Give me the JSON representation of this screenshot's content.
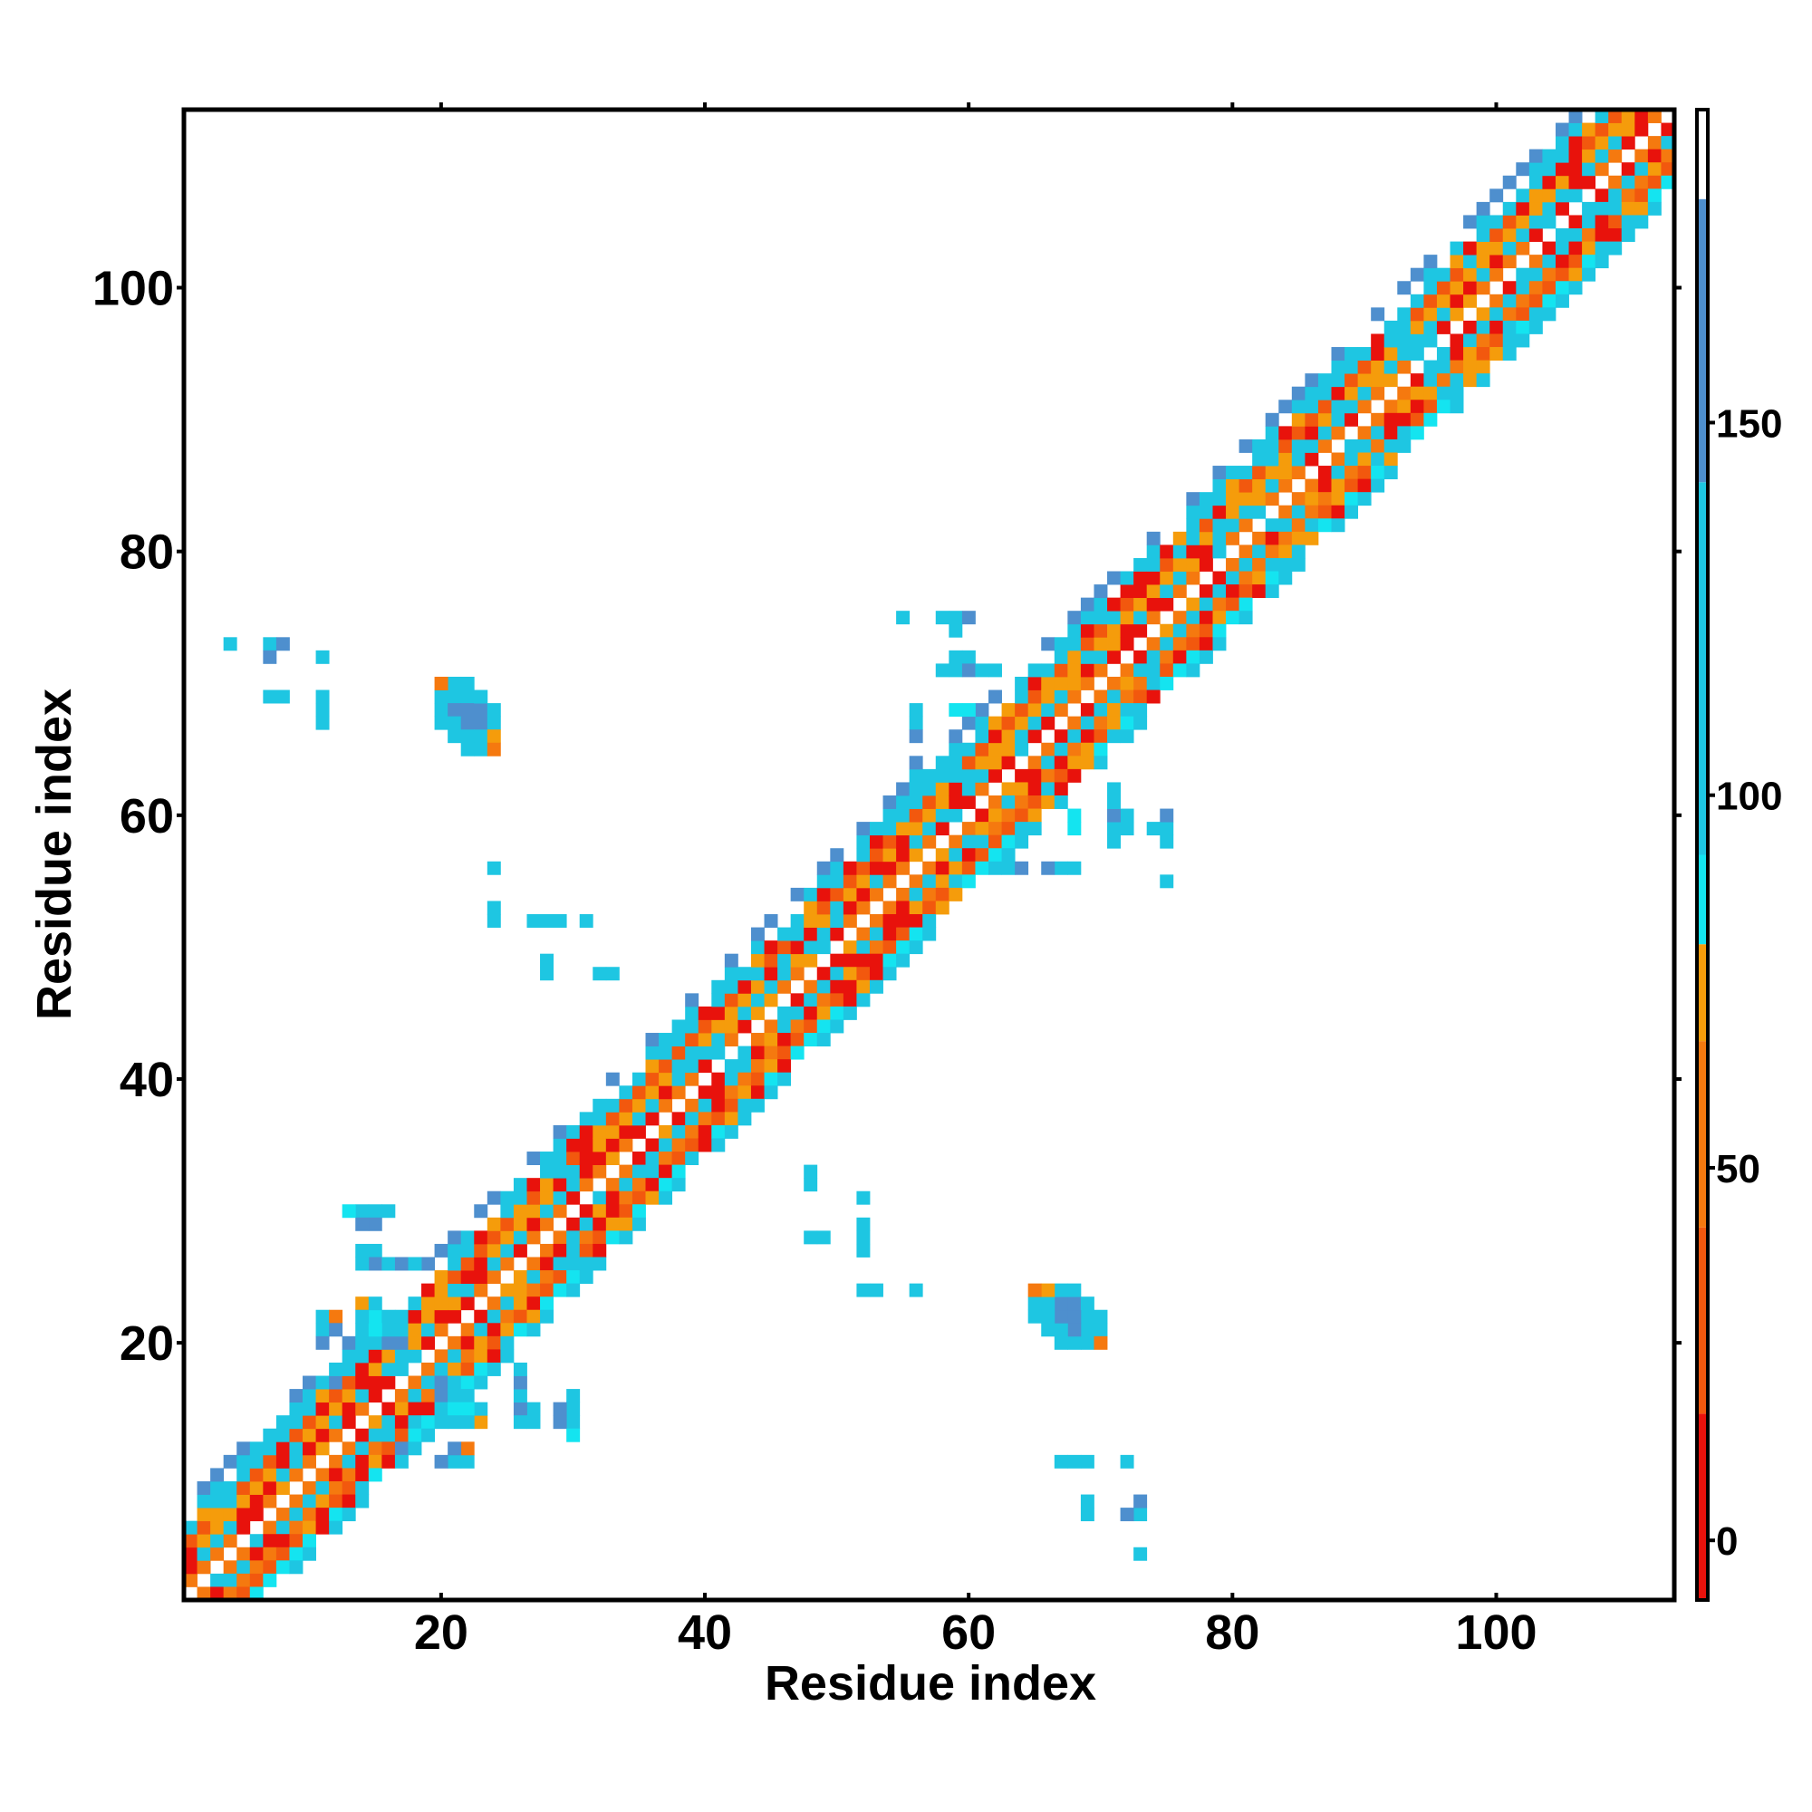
{
  "chart_data": {
    "type": "heatmap",
    "title": "",
    "xlabel": "Residue index",
    "ylabel": "Residue index",
    "xlim": [
      0.5,
      113.5
    ],
    "ylim": [
      0.5,
      113.5
    ],
    "x_ticks": [
      20,
      40,
      60,
      80,
      100
    ],
    "y_ticks": [
      20,
      40,
      60,
      80,
      100
    ],
    "grid": false,
    "legend": "none",
    "colorbar": {
      "ticks": [
        0,
        50,
        100,
        150
      ],
      "range": [
        -8,
        192
      ],
      "levels": [
        {
          "from": -8,
          "to": 17,
          "color": "#e8120c"
        },
        {
          "from": 17,
          "to": 42,
          "color": "#f2580e"
        },
        {
          "from": 42,
          "to": 67,
          "color": "#f5790f"
        },
        {
          "from": 67,
          "to": 80,
          "color": "#f59c0b"
        },
        {
          "from": 80,
          "to": 92,
          "color": "#14e4f0"
        },
        {
          "from": 92,
          "to": 142,
          "color": "#1ec6e2"
        },
        {
          "from": 142,
          "to": 180,
          "color": "#4e8fce"
        },
        {
          "from": 180,
          "to": 192,
          "color": "#ffffff"
        }
      ]
    },
    "band": {
      "residue_count": 113,
      "diagonal_pattern": [
        {
          "offset": 0,
          "value": 185
        },
        {
          "offset": 1,
          "value": 45
        },
        {
          "offset": 2,
          "value": 100
        },
        {
          "offset": 3,
          "value": 75
        },
        {
          "offset": 4,
          "value": 25
        },
        {
          "offset": 5,
          "value": 95
        },
        {
          "offset": 6,
          "value": 100
        },
        {
          "offset": 7,
          "value": 160
        },
        {
          "offset": -1,
          "value": 45
        },
        {
          "offset": -2,
          "value": 95
        },
        {
          "offset": -3,
          "value": 60
        },
        {
          "offset": -4,
          "value": 30
        },
        {
          "offset": -5,
          "value": 90
        },
        {
          "offset": -6,
          "value": 110
        }
      ],
      "note_cells_red": [
        [
          13,
          13
        ],
        [
          15,
          15
        ],
        [
          22,
          22
        ],
        [
          35,
          35
        ],
        [
          60,
          60
        ],
        [
          63,
          63
        ],
        [
          66,
          66
        ],
        [
          72,
          72
        ],
        [
          78,
          78
        ],
        [
          86,
          86
        ],
        [
          96,
          96
        ],
        [
          103,
          103
        ],
        [
          107,
          107
        ]
      ]
    },
    "off_diagonal_cells": [
      {
        "x": 4,
        "y": 73,
        "value": 110
      },
      {
        "x": 7,
        "y": 73,
        "value": 110
      },
      {
        "x": 8,
        "y": 73,
        "value": 150
      },
      {
        "x": 7,
        "y": 72,
        "value": 150
      },
      {
        "x": 11,
        "y": 72,
        "value": 110
      },
      {
        "x": 7,
        "y": 69,
        "value": 110
      },
      {
        "x": 8,
        "y": 69,
        "value": 110
      },
      {
        "x": 11,
        "y": 69,
        "value": 110
      },
      {
        "x": 11,
        "y": 68,
        "value": 110
      },
      {
        "x": 11,
        "y": 67,
        "value": 110
      },
      {
        "x": 20,
        "y": 69,
        "value": 60
      },
      {
        "x": 21,
        "y": 69,
        "value": 110
      },
      {
        "x": 22,
        "y": 69,
        "value": 110
      },
      {
        "x": 20,
        "y": 68,
        "value": 110
      },
      {
        "x": 21,
        "y": 68,
        "value": 150
      },
      {
        "x": 22,
        "y": 68,
        "value": 150
      },
      {
        "x": 23,
        "y": 68,
        "value": 110
      },
      {
        "x": 20,
        "y": 67,
        "value": 110
      },
      {
        "x": 21,
        "y": 67,
        "value": 150
      },
      {
        "x": 22,
        "y": 67,
        "value": 150
      },
      {
        "x": 23,
        "y": 67,
        "value": 150
      },
      {
        "x": 24,
        "y": 67,
        "value": 110
      },
      {
        "x": 21,
        "y": 66,
        "value": 110
      },
      {
        "x": 22,
        "y": 66,
        "value": 150
      },
      {
        "x": 23,
        "y": 66,
        "value": 150
      },
      {
        "x": 24,
        "y": 66,
        "value": 110
      },
      {
        "x": 22,
        "y": 65,
        "value": 110
      },
      {
        "x": 23,
        "y": 65,
        "value": 110
      },
      {
        "x": 24,
        "y": 65,
        "value": 60
      },
      {
        "x": 24,
        "y": 56,
        "value": 110
      },
      {
        "x": 24,
        "y": 53,
        "value": 110
      },
      {
        "x": 24,
        "y": 52,
        "value": 110
      },
      {
        "x": 28,
        "y": 52,
        "value": 110
      },
      {
        "x": 29,
        "y": 52,
        "value": 110
      },
      {
        "x": 31,
        "y": 52,
        "value": 110
      },
      {
        "x": 28,
        "y": 49,
        "value": 110
      },
      {
        "x": 28,
        "y": 48,
        "value": 110
      },
      {
        "x": 33,
        "y": 48,
        "value": 110
      },
      {
        "x": 55,
        "y": 75,
        "value": 110
      },
      {
        "x": 58,
        "y": 75,
        "value": 110
      },
      {
        "x": 59,
        "y": 75,
        "value": 110
      },
      {
        "x": 60,
        "y": 75,
        "value": 150
      },
      {
        "x": 59,
        "y": 74,
        "value": 150
      },
      {
        "x": 59,
        "y": 72,
        "value": 110
      },
      {
        "x": 60,
        "y": 72,
        "value": 110
      },
      {
        "x": 58,
        "y": 71,
        "value": 110
      },
      {
        "x": 59,
        "y": 71,
        "value": 110
      },
      {
        "x": 60,
        "y": 71,
        "value": 110
      },
      {
        "x": 61,
        "y": 71,
        "value": 110
      },
      {
        "x": 56,
        "y": 67,
        "value": 110
      },
      {
        "x": 56,
        "y": 66,
        "value": 110
      },
      {
        "x": 56,
        "y": 63,
        "value": 110
      },
      {
        "x": 59,
        "y": 68,
        "value": 85
      },
      {
        "x": 60,
        "y": 68,
        "value": 85
      },
      {
        "x": 71,
        "y": 62,
        "value": 110
      },
      {
        "x": 71,
        "y": 61,
        "value": 110
      },
      {
        "x": 72,
        "y": 60,
        "value": 110
      },
      {
        "x": 71,
        "y": 60,
        "value": 150
      },
      {
        "x": 71,
        "y": 59,
        "value": 110
      },
      {
        "x": 72,
        "y": 59,
        "value": 110
      },
      {
        "x": 74,
        "y": 59,
        "value": 110
      },
      {
        "x": 75,
        "y": 59,
        "value": 110
      },
      {
        "x": 75,
        "y": 60,
        "value": 150
      },
      {
        "x": 75,
        "y": 58,
        "value": 110
      },
      {
        "x": 66,
        "y": 56,
        "value": 150
      },
      {
        "x": 67,
        "y": 56,
        "value": 110
      },
      {
        "x": 68,
        "y": 56,
        "value": 110
      },
      {
        "x": 64,
        "y": 56,
        "value": 150
      },
      {
        "x": 75,
        "y": 55,
        "value": 110
      },
      {
        "x": 14,
        "y": 30,
        "value": 110
      },
      {
        "x": 15,
        "y": 30,
        "value": 110
      },
      {
        "x": 16,
        "y": 30,
        "value": 110
      },
      {
        "x": 15,
        "y": 29,
        "value": 150
      },
      {
        "x": 15,
        "y": 27,
        "value": 110
      },
      {
        "x": 15,
        "y": 26,
        "value": 110
      },
      {
        "x": 16,
        "y": 26,
        "value": 150
      },
      {
        "x": 17,
        "y": 26,
        "value": 150
      },
      {
        "x": 18,
        "y": 26,
        "value": 110
      },
      {
        "x": 14,
        "y": 23,
        "value": 75
      },
      {
        "x": 15,
        "y": 23,
        "value": 110
      },
      {
        "x": 17,
        "y": 21,
        "value": 110
      },
      {
        "x": 11,
        "y": 22,
        "value": 150
      },
      {
        "x": 12,
        "y": 22,
        "value": 110
      },
      {
        "x": 11,
        "y": 21,
        "value": 110
      },
      {
        "x": 12,
        "y": 21,
        "value": 110
      },
      {
        "x": 12,
        "y": 18,
        "value": 150
      },
      {
        "x": 16,
        "y": 20,
        "value": 150
      },
      {
        "x": 17,
        "y": 20,
        "value": 150
      },
      {
        "x": 20,
        "y": 16,
        "value": 150
      },
      {
        "x": 21,
        "y": 16,
        "value": 110
      },
      {
        "x": 22,
        "y": 16,
        "value": 110
      },
      {
        "x": 20,
        "y": 15,
        "value": 110
      },
      {
        "x": 21,
        "y": 15,
        "value": 85
      },
      {
        "x": 22,
        "y": 15,
        "value": 85
      },
      {
        "x": 20,
        "y": 14,
        "value": 110
      },
      {
        "x": 21,
        "y": 14,
        "value": 110
      },
      {
        "x": 22,
        "y": 14,
        "value": 110
      },
      {
        "x": 26,
        "y": 17,
        "value": 150
      },
      {
        "x": 26,
        "y": 16,
        "value": 110
      },
      {
        "x": 26,
        "y": 15,
        "value": 150
      },
      {
        "x": 26,
        "y": 14,
        "value": 110
      },
      {
        "x": 27,
        "y": 14,
        "value": 110
      },
      {
        "x": 29,
        "y": 14,
        "value": 150
      },
      {
        "x": 30,
        "y": 15,
        "value": 110
      },
      {
        "x": 30,
        "y": 14,
        "value": 110
      },
      {
        "x": 30,
        "y": 13,
        "value": 85
      },
      {
        "x": 17,
        "y": 12,
        "value": 150
      },
      {
        "x": 18,
        "y": 12,
        "value": 110
      },
      {
        "x": 21,
        "y": 12,
        "value": 150
      },
      {
        "x": 22,
        "y": 12,
        "value": 60
      },
      {
        "x": 20,
        "y": 11,
        "value": 150
      },
      {
        "x": 21,
        "y": 11,
        "value": 110
      },
      {
        "x": 22,
        "y": 11,
        "value": 110
      },
      {
        "x": 48,
        "y": 32,
        "value": 110
      },
      {
        "x": 52,
        "y": 31,
        "value": 110
      },
      {
        "x": 48,
        "y": 28,
        "value": 110
      },
      {
        "x": 49,
        "y": 28,
        "value": 110
      },
      {
        "x": 52,
        "y": 28,
        "value": 110
      },
      {
        "x": 52,
        "y": 27,
        "value": 110
      },
      {
        "x": 52,
        "y": 24,
        "value": 110
      },
      {
        "x": 53,
        "y": 24,
        "value": 110
      },
      {
        "x": 56,
        "y": 24,
        "value": 110
      },
      {
        "x": 66,
        "y": 24,
        "value": 75
      },
      {
        "x": 67,
        "y": 24,
        "value": 110
      },
      {
        "x": 68,
        "y": 24,
        "value": 110
      },
      {
        "x": 66,
        "y": 23,
        "value": 110
      },
      {
        "x": 67,
        "y": 23,
        "value": 150
      },
      {
        "x": 68,
        "y": 23,
        "value": 150
      },
      {
        "x": 69,
        "y": 23,
        "value": 110
      },
      {
        "x": 66,
        "y": 22,
        "value": 110
      },
      {
        "x": 67,
        "y": 22,
        "value": 150
      },
      {
        "x": 68,
        "y": 22,
        "value": 150
      },
      {
        "x": 69,
        "y": 22,
        "value": 110
      },
      {
        "x": 70,
        "y": 22,
        "value": 110
      },
      {
        "x": 67,
        "y": 21,
        "value": 110
      },
      {
        "x": 68,
        "y": 21,
        "value": 150
      },
      {
        "x": 69,
        "y": 21,
        "value": 110
      },
      {
        "x": 70,
        "y": 21,
        "value": 110
      },
      {
        "x": 68,
        "y": 20,
        "value": 110
      },
      {
        "x": 69,
        "y": 20,
        "value": 110
      },
      {
        "x": 70,
        "y": 20,
        "value": 60
      },
      {
        "x": 67,
        "y": 11,
        "value": 110
      },
      {
        "x": 68,
        "y": 11,
        "value": 110
      },
      {
        "x": 69,
        "y": 11,
        "value": 110
      },
      {
        "x": 72,
        "y": 11,
        "value": 110
      },
      {
        "x": 69,
        "y": 8,
        "value": 110
      },
      {
        "x": 69,
        "y": 7,
        "value": 110
      },
      {
        "x": 73,
        "y": 8,
        "value": 150
      },
      {
        "x": 72,
        "y": 7,
        "value": 150
      },
      {
        "x": 73,
        "y": 7,
        "value": 110
      },
      {
        "x": 73,
        "y": 4,
        "value": 110
      },
      {
        "x": 94,
        "y": 96,
        "value": 110
      },
      {
        "x": 95,
        "y": 96,
        "value": 110
      },
      {
        "x": 94,
        "y": 95,
        "value": 110
      },
      {
        "x": 93,
        "y": 95,
        "value": 110
      },
      {
        "x": 97,
        "y": 93,
        "value": 110
      },
      {
        "x": 97,
        "y": 92,
        "value": 110
      },
      {
        "x": 96,
        "y": 92,
        "value": 110
      },
      {
        "x": 108,
        "y": 103,
        "value": 110
      },
      {
        "x": 109,
        "y": 103,
        "value": 110
      }
    ]
  }
}
